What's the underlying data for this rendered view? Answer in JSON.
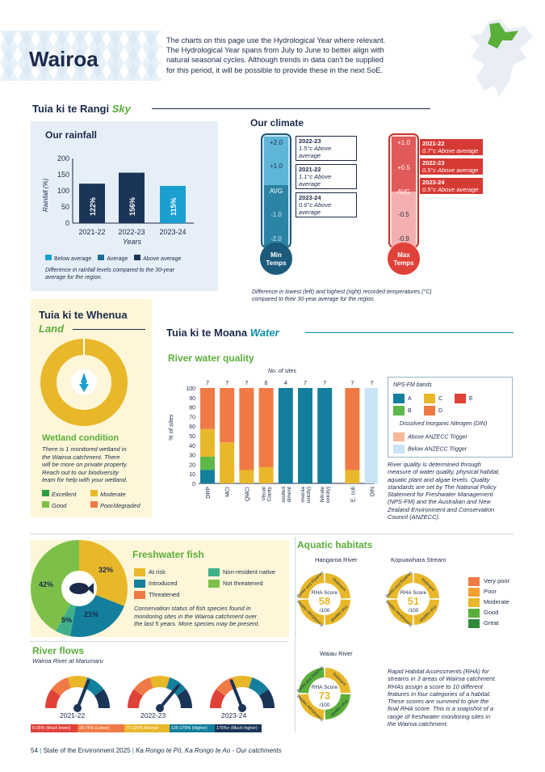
{
  "header": {
    "title": "Wairoa",
    "intro": [
      "The charts on this page use the Hydrological Year where relevant.",
      "The Hydrological Year spans from July to June to better align with",
      "natural seasonal cycles. Although trends in data can't be supplied",
      "for this period, it will be possible to provide these in the next SoE."
    ]
  },
  "sky": {
    "title": "Tuia ki te Rangi",
    "title_en": "Sky"
  },
  "rainfall": {
    "title": "Our rainfall",
    "ylabel": "Rainfall (%)",
    "xlabel": "Years",
    "legend": [
      "Below average",
      "Average",
      "Above average"
    ],
    "note": [
      "Difference in rainfall levels compared to the 30-year",
      "average for the region."
    ]
  },
  "climate": {
    "title": "Our climate",
    "min_label": [
      "Min",
      "Temps"
    ],
    "max_label": [
      "Max",
      "Temps"
    ],
    "avg": "AVG",
    "min_ticks": [
      "+2.0",
      "+1.0",
      "-1.0",
      "-2.0"
    ],
    "max_ticks": [
      "+1.0",
      "+0.5",
      "-0.5",
      "-0.9"
    ],
    "min_entries": [
      {
        "year": "2022-23",
        "text": "1.5°c Above average"
      },
      {
        "year": "2021-22",
        "text": "1.1°c Above average"
      },
      {
        "year": "2023-24",
        "text": "0.6°c Above average"
      }
    ],
    "max_entries": [
      {
        "year": "2021-22",
        "text": "0.7°c Above average"
      },
      {
        "year": "2022-23",
        "text": "0.5°c Above average"
      },
      {
        "year": "2023-24",
        "text": "0.5°c Above average"
      }
    ],
    "note": [
      "Difference in lowest (left) and highest (right) recorded temperatures (°C)",
      "compared to their 30-year average for the region."
    ]
  },
  "land": {
    "title": "Tuia ki te Whenua",
    "title_en": "Land",
    "wetland_title": "Wetland condition",
    "wetland_text": [
      "There is 1 monitored wetland in",
      "the Wairoa catchment. There",
      "will be more on private property.",
      "Reach out to our biodiversity",
      "team for help with your wetland."
    ],
    "legend": [
      "Excellent",
      "Moderate",
      "Good",
      "Poor/degraded"
    ]
  },
  "water": {
    "title": "Tuia ki te Moana",
    "title_en": "Water"
  },
  "river_quality": {
    "title": "River water quality",
    "sites_label": "No. of sites",
    "yaxis_label": "% of sites",
    "bands_title": "NPS-FM bands",
    "bands": [
      "A",
      "B",
      "C",
      "D",
      "E"
    ],
    "din_title": "Dissolved Inorganic Nitrogen (DIN)",
    "din_items": [
      "Above ANZECC Trigger",
      "Below ANZECC Trigger"
    ],
    "text": [
      "River quality is determined through",
      "measure of water quality, physical habitat,",
      "aquatic plant and algae levels. Quality",
      "standards are set by The National Policy",
      "Statement for Freshwater Management",
      "(NPS-FM) and the Australian and New",
      "Zealand Environment and Conservation",
      "Council (ANZECC)."
    ]
  },
  "chart_data": {
    "type": "bar",
    "title": "River water quality",
    "xlabel": "",
    "ylabel": "% of sites",
    "ylim": [
      0,
      100
    ],
    "categories": [
      "DRP",
      "MCI",
      "QMCI",
      "Visual Clarity",
      "Deposited Sediment",
      "Ammonia (toxicity)",
      "Nitrate (toxicity)",
      "E. coli",
      "DIN"
    ],
    "sites": [
      "7",
      "7",
      "7",
      "6",
      "4",
      "7",
      "7",
      "7",
      "7"
    ],
    "series": [
      {
        "name": "A",
        "color": "#137f9c",
        "values": [
          14,
          0,
          0,
          0,
          100,
          100,
          100,
          0,
          0
        ]
      },
      {
        "name": "B",
        "color": "#5db84a",
        "values": [
          14,
          0,
          0,
          0,
          0,
          0,
          0,
          0,
          0
        ]
      },
      {
        "name": "C",
        "color": "#e8b82a",
        "values": [
          29,
          43,
          14,
          17,
          0,
          0,
          0,
          14,
          0
        ]
      },
      {
        "name": "D",
        "color": "#f07a45",
        "values": [
          43,
          57,
          86,
          83,
          0,
          0,
          0,
          86,
          0
        ]
      },
      {
        "name": "Below ANZECC Trigger",
        "color": "#c9e4f5",
        "values": [
          0,
          0,
          0,
          0,
          0,
          0,
          0,
          0,
          100
        ]
      }
    ]
  },
  "fish": {
    "title": "Freshwater fish",
    "slices": [
      {
        "label": "32%",
        "value": 32,
        "name": "Not threatened / At risk"
      },
      {
        "label": "21%",
        "value": 21
      },
      {
        "label": "5%",
        "value": 5
      },
      {
        "label": "42%",
        "value": 42
      }
    ],
    "legend": [
      "At risk",
      "Non-resident native",
      "Introduced",
      "Not threatened",
      "Threatened"
    ],
    "note": [
      "Conservation status of fish species found in",
      "monitoring sites in the Wairoa catchment over",
      "the last 5 years. More species may be present."
    ]
  },
  "flows": {
    "title": "River flows",
    "subtitle": "Wairoa River at Marumaru",
    "years": [
      "2021-22",
      "2022-23",
      "2023-24"
    ],
    "needle_pct": [
      62,
      72,
      38
    ],
    "legend": [
      "0-25% (Much lower)",
      "25-75% (Lower)",
      "75-125% Normal",
      "125-175% (Higher)",
      "175%+ (Much higher)"
    ]
  },
  "habitats": {
    "title": "Aquatic habitats",
    "sites": [
      {
        "name": "Hangaroa River",
        "score": "58"
      },
      {
        "name": "Kopuawhara Stream",
        "score": "51"
      },
      {
        "name": "Waiau River",
        "score": "73"
      }
    ],
    "score_label": "RHA Score",
    "per": "/100",
    "segments": [
      "Sediment",
      "Fish Habitat",
      "Invertebrate Habitat",
      "Banks and Riparian"
    ],
    "legend": [
      "Very poor",
      "Poor",
      "Moderate",
      "Good",
      "Great"
    ],
    "text": [
      "Rapid Habitat Assessments (RHA) for",
      "streams in 3 areas of Wairoa catchment.",
      "RHAs assign a score to 10 different",
      "features in four categories of a habitat.",
      "These scores are summed to give the",
      "final RHA score. This is a snapshot of a",
      "range of freshwater monitoring sites in",
      "the Wairoa catchment."
    ]
  },
  "footer": {
    "page": "54",
    "sep": "|",
    "pub": "State of the Environment 2025",
    "sep2": "|",
    "section": "Ka Rongo te Pō, Ka Rongo te Ao - Our catchments"
  }
}
